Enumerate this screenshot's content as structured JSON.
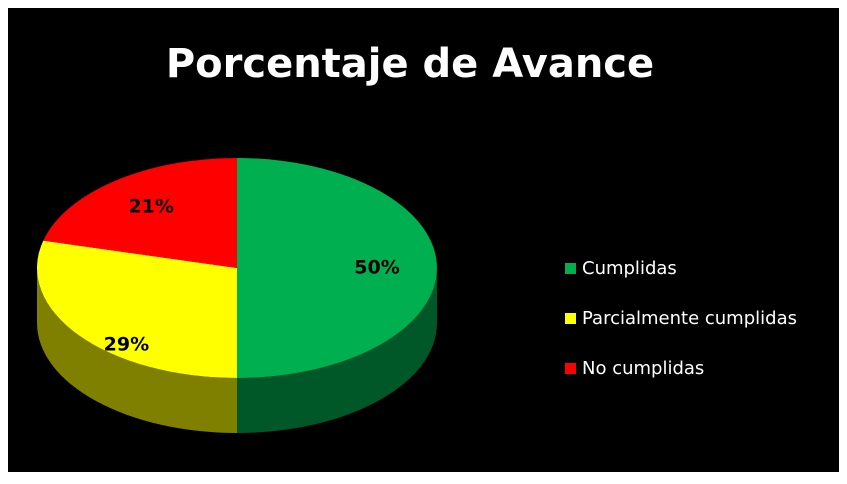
{
  "chart_data": {
    "type": "pie",
    "title": "Porcentaje de Avance",
    "categories": [
      "Cumplidas",
      "Parcialmente cumplidas",
      "No cumplidas"
    ],
    "values": [
      50,
      29,
      21
    ],
    "value_labels": [
      "50%",
      "29%",
      "21%"
    ],
    "colors": [
      "#00b050",
      "#ffff00",
      "#ff0000"
    ],
    "legend": "right"
  }
}
